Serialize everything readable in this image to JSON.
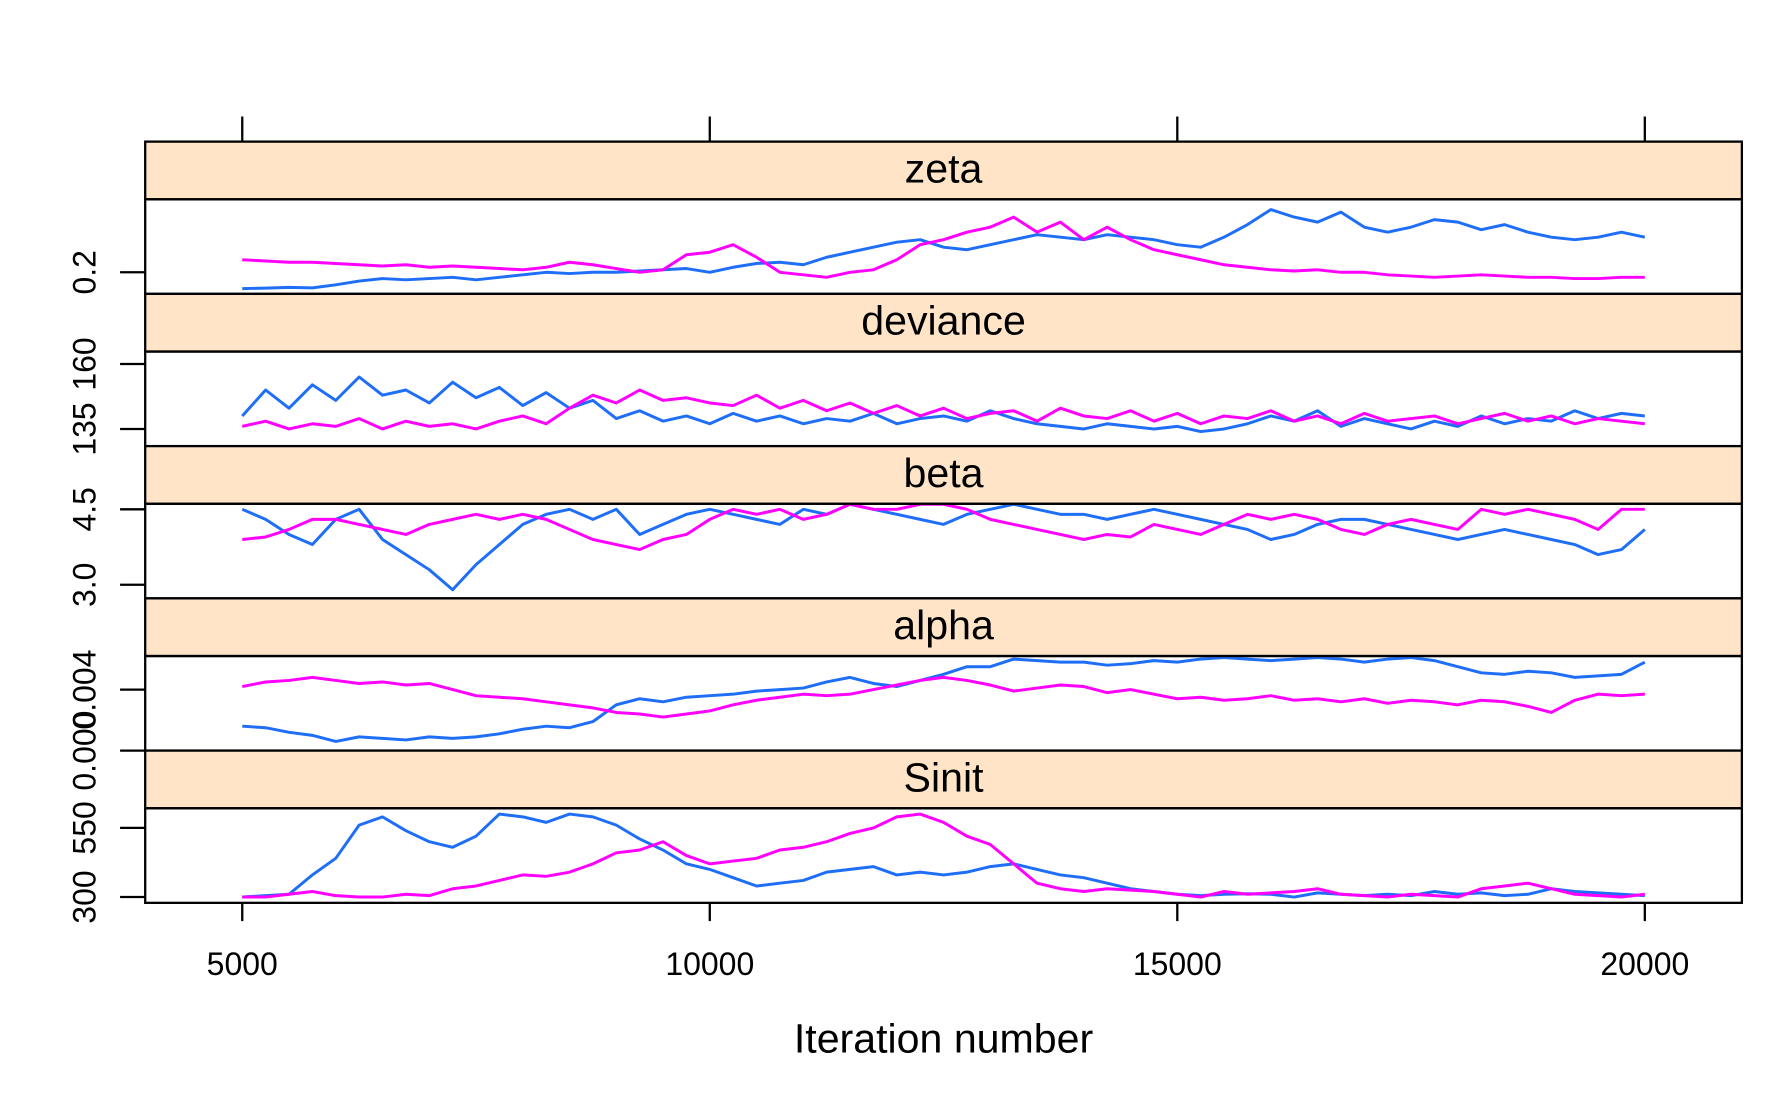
{
  "chart_data": [
    {
      "type": "line",
      "title": "zeta",
      "x": [
        5000,
        5250,
        5500,
        5750,
        6000,
        6250,
        6500,
        6750,
        7000,
        7250,
        7500,
        7750,
        8000,
        8250,
        8500,
        8750,
        9000,
        9250,
        9500,
        9750,
        10000,
        10250,
        10500,
        10750,
        11000,
        11250,
        11500,
        11750,
        12000,
        12250,
        12500,
        12750,
        13000,
        13250,
        13500,
        13750,
        14000,
        14250,
        14500,
        14750,
        15000,
        15250,
        15500,
        15750,
        16000,
        16250,
        16500,
        16750,
        17000,
        17250,
        17500,
        17750,
        18000,
        18250,
        18500,
        18750,
        19000,
        19250,
        19500,
        19750,
        20000
      ],
      "xlim": [
        3962,
        21038
      ],
      "ylim": [
        0.114,
        0.491
      ],
      "yticks": [
        0.2
      ],
      "series": [
        {
          "color": "#1f6ef7",
          "values": [
            0.135,
            0.137,
            0.14,
            0.138,
            0.15,
            0.165,
            0.175,
            0.17,
            0.175,
            0.18,
            0.17,
            0.18,
            0.19,
            0.2,
            0.195,
            0.2,
            0.2,
            0.205,
            0.21,
            0.215,
            0.2,
            0.22,
            0.235,
            0.24,
            0.23,
            0.26,
            0.28,
            0.3,
            0.32,
            0.33,
            0.3,
            0.29,
            0.31,
            0.33,
            0.35,
            0.34,
            0.33,
            0.35,
            0.34,
            0.33,
            0.31,
            0.3,
            0.34,
            0.39,
            0.45,
            0.42,
            0.4,
            0.44,
            0.38,
            0.36,
            0.38,
            0.41,
            0.4,
            0.37,
            0.39,
            0.36,
            0.34,
            0.33,
            0.34,
            0.36,
            0.34
          ]
        },
        {
          "color": "#ff00ff",
          "values": [
            0.25,
            0.245,
            0.24,
            0.24,
            0.235,
            0.23,
            0.225,
            0.23,
            0.22,
            0.225,
            0.22,
            0.215,
            0.21,
            0.22,
            0.24,
            0.23,
            0.215,
            0.2,
            0.21,
            0.27,
            0.28,
            0.31,
            0.26,
            0.2,
            0.19,
            0.18,
            0.2,
            0.21,
            0.25,
            0.31,
            0.33,
            0.36,
            0.38,
            0.42,
            0.36,
            0.4,
            0.33,
            0.38,
            0.33,
            0.29,
            0.27,
            0.25,
            0.23,
            0.22,
            0.21,
            0.205,
            0.21,
            0.2,
            0.2,
            0.19,
            0.185,
            0.18,
            0.185,
            0.19,
            0.185,
            0.18,
            0.18,
            0.175,
            0.175,
            0.18,
            0.18
          ]
        }
      ]
    },
    {
      "type": "line",
      "title": "deviance",
      "x": [
        5000,
        5250,
        5500,
        5750,
        6000,
        6250,
        6500,
        6750,
        7000,
        7250,
        7500,
        7750,
        8000,
        8250,
        8500,
        8750,
        9000,
        9250,
        9500,
        9750,
        10000,
        10250,
        10500,
        10750,
        11000,
        11250,
        11500,
        11750,
        12000,
        12250,
        12500,
        12750,
        13000,
        13250,
        13500,
        13750,
        14000,
        14250,
        14500,
        14750,
        15000,
        15250,
        15500,
        15750,
        16000,
        16250,
        16500,
        16750,
        17000,
        17250,
        17500,
        17750,
        18000,
        18250,
        18500,
        18750,
        19000,
        19250,
        19500,
        19750,
        20000
      ],
      "xlim": [
        3962,
        21038
      ],
      "ylim": [
        128.4,
        164.8
      ],
      "yticks": [
        135,
        160
      ],
      "series": [
        {
          "color": "#1f6ef7",
          "values": [
            140,
            150,
            143,
            152,
            146,
            155,
            148,
            150,
            145,
            153,
            147,
            151,
            144,
            149,
            143,
            146,
            139,
            142,
            138,
            140,
            137,
            141,
            138,
            140,
            137,
            139,
            138,
            141,
            137,
            139,
            140,
            138,
            142,
            139,
            137,
            136,
            135,
            137,
            136,
            135,
            136,
            134,
            135,
            137,
            140,
            138,
            142,
            136,
            139,
            137,
            135,
            138,
            136,
            140,
            137,
            139,
            138,
            142,
            139,
            141,
            140
          ]
        },
        {
          "color": "#ff00ff",
          "values": [
            136,
            138,
            135,
            137,
            136,
            139,
            135,
            138,
            136,
            137,
            135,
            138,
            140,
            137,
            143,
            148,
            145,
            150,
            146,
            147,
            145,
            144,
            148,
            143,
            146,
            142,
            145,
            141,
            144,
            140,
            143,
            139,
            141,
            142,
            138,
            143,
            140,
            139,
            142,
            138,
            141,
            137,
            140,
            139,
            142,
            138,
            140,
            137,
            141,
            138,
            139,
            140,
            137,
            139,
            141,
            138,
            140,
            137,
            139,
            138,
            137
          ]
        }
      ]
    },
    {
      "type": "line",
      "title": "beta",
      "x": [
        5000,
        5250,
        5500,
        5750,
        6000,
        6250,
        6500,
        6750,
        7000,
        7250,
        7500,
        7750,
        8000,
        8250,
        8500,
        8750,
        9000,
        9250,
        9500,
        9750,
        10000,
        10250,
        10500,
        10750,
        11000,
        11250,
        11500,
        11750,
        12000,
        12250,
        12500,
        12750,
        13000,
        13250,
        13500,
        13750,
        14000,
        14250,
        14500,
        14750,
        15000,
        15250,
        15500,
        15750,
        16000,
        16250,
        16500,
        16750,
        17000,
        17250,
        17500,
        17750,
        18000,
        18250,
        18500,
        18750,
        19000,
        19250,
        19500,
        19750,
        20000
      ],
      "xlim": [
        3962,
        21038
      ],
      "ylim": [
        2.73,
        4.61
      ],
      "yticks": [
        {
          "value": 3,
          "label": "3.0"
        },
        4.5
      ],
      "series": [
        {
          "color": "#1f6ef7",
          "values": [
            4.5,
            4.3,
            4.0,
            3.8,
            4.3,
            4.5,
            3.9,
            3.6,
            3.3,
            2.9,
            3.4,
            3.8,
            4.2,
            4.4,
            4.5,
            4.3,
            4.5,
            4.0,
            4.2,
            4.4,
            4.5,
            4.4,
            4.3,
            4.2,
            4.5,
            4.4,
            4.6,
            4.5,
            4.4,
            4.3,
            4.2,
            4.4,
            4.5,
            4.6,
            4.5,
            4.4,
            4.4,
            4.3,
            4.4,
            4.5,
            4.4,
            4.3,
            4.2,
            4.1,
            3.9,
            4.0,
            4.2,
            4.3,
            4.3,
            4.2,
            4.1,
            4.0,
            3.9,
            4.0,
            4.1,
            4.0,
            3.9,
            3.8,
            3.6,
            3.7,
            4.1
          ]
        },
        {
          "color": "#ff00ff",
          "values": [
            3.9,
            3.95,
            4.1,
            4.3,
            4.3,
            4.2,
            4.1,
            4.0,
            4.2,
            4.3,
            4.4,
            4.3,
            4.4,
            4.3,
            4.1,
            3.9,
            3.8,
            3.7,
            3.9,
            4.0,
            4.3,
            4.5,
            4.4,
            4.5,
            4.3,
            4.4,
            4.6,
            4.5,
            4.5,
            4.6,
            4.6,
            4.5,
            4.3,
            4.2,
            4.1,
            4.0,
            3.9,
            4.0,
            3.95,
            4.2,
            4.1,
            4.0,
            4.2,
            4.4,
            4.3,
            4.4,
            4.3,
            4.1,
            4.0,
            4.2,
            4.3,
            4.2,
            4.1,
            4.5,
            4.4,
            4.5,
            4.4,
            4.3,
            4.1,
            4.5,
            4.5
          ]
        }
      ]
    },
    {
      "type": "line",
      "title": "alpha",
      "x": [
        5000,
        5250,
        5500,
        5750,
        6000,
        6250,
        6500,
        6750,
        7000,
        7250,
        7500,
        7750,
        8000,
        8250,
        8500,
        8750,
        9000,
        9250,
        9500,
        9750,
        10000,
        10250,
        10500,
        10750,
        11000,
        11250,
        11500,
        11750,
        12000,
        12250,
        12500,
        12750,
        13000,
        13250,
        13500,
        13750,
        14000,
        14250,
        14500,
        14750,
        15000,
        15250,
        15500,
        15750,
        16000,
        16250,
        16500,
        16750,
        17000,
        17250,
        17500,
        17750,
        18000,
        18250,
        18500,
        18750,
        19000,
        19250,
        19500,
        19750,
        20000
      ],
      "xlim": [
        3962,
        21038
      ],
      "ylim": [
        0,
        0.0062
      ],
      "yticks": [
        {
          "value": 0,
          "label": "0.000"
        },
        0.004
      ],
      "series": [
        {
          "color": "#1f6ef7",
          "values": [
            0.0016,
            0.0015,
            0.0012,
            0.001,
            0.0006,
            0.0009,
            0.0008,
            0.0007,
            0.0009,
            0.0008,
            0.0009,
            0.0011,
            0.0014,
            0.0016,
            0.0015,
            0.0019,
            0.003,
            0.0034,
            0.0032,
            0.0035,
            0.0036,
            0.0037,
            0.0039,
            0.004,
            0.0041,
            0.0045,
            0.0048,
            0.0044,
            0.0042,
            0.0046,
            0.005,
            0.0055,
            0.0055,
            0.006,
            0.0059,
            0.0058,
            0.0058,
            0.0056,
            0.0057,
            0.0059,
            0.0058,
            0.006,
            0.0061,
            0.006,
            0.0059,
            0.006,
            0.0061,
            0.006,
            0.0058,
            0.006,
            0.0061,
            0.0059,
            0.0055,
            0.0051,
            0.005,
            0.0052,
            0.0051,
            0.0048,
            0.0049,
            0.005,
            0.0058
          ]
        },
        {
          "color": "#ff00ff",
          "values": [
            0.0042,
            0.0045,
            0.0046,
            0.0048,
            0.0046,
            0.0044,
            0.0045,
            0.0043,
            0.0044,
            0.004,
            0.0036,
            0.0035,
            0.0034,
            0.0032,
            0.003,
            0.0028,
            0.0025,
            0.0024,
            0.0022,
            0.0024,
            0.0026,
            0.003,
            0.0033,
            0.0035,
            0.0037,
            0.0036,
            0.0037,
            0.004,
            0.0043,
            0.0046,
            0.0048,
            0.0046,
            0.0043,
            0.0039,
            0.0041,
            0.0043,
            0.0042,
            0.0038,
            0.004,
            0.0037,
            0.0034,
            0.0035,
            0.0033,
            0.0034,
            0.0036,
            0.0033,
            0.0034,
            0.0032,
            0.0034,
            0.0031,
            0.0033,
            0.0032,
            0.003,
            0.0033,
            0.0032,
            0.0029,
            0.0025,
            0.0033,
            0.0037,
            0.0036,
            0.0037
          ]
        }
      ]
    },
    {
      "type": "line",
      "title": "Sinit",
      "x": [
        5000,
        5250,
        5500,
        5750,
        6000,
        6250,
        6500,
        6750,
        7000,
        7250,
        7500,
        7750,
        8000,
        8250,
        8500,
        8750,
        9000,
        9250,
        9500,
        9750,
        10000,
        10250,
        10500,
        10750,
        11000,
        11250,
        11500,
        11750,
        12000,
        12250,
        12500,
        12750,
        13000,
        13250,
        13500,
        13750,
        14000,
        14250,
        14500,
        14750,
        15000,
        15250,
        15500,
        15750,
        16000,
        16250,
        16500,
        16750,
        17000,
        17250,
        17500,
        17750,
        18000,
        18250,
        18500,
        18750,
        19000,
        19250,
        19500,
        19750,
        20000
      ],
      "xlim": [
        3962,
        21038
      ],
      "xticks": [
        5000,
        10000,
        15000,
        20000
      ],
      "xlabel": "Iteration number",
      "ylim": [
        279,
        621
      ],
      "yticks": [
        300,
        550
      ],
      "series": [
        {
          "color": "#1f6ef7",
          "values": [
            300,
            305,
            310,
            380,
            440,
            560,
            590,
            540,
            500,
            480,
            520,
            600,
            590,
            570,
            600,
            590,
            560,
            510,
            470,
            420,
            400,
            370,
            340,
            350,
            360,
            390,
            400,
            410,
            380,
            390,
            380,
            390,
            410,
            420,
            400,
            380,
            370,
            350,
            330,
            320,
            310,
            305,
            310,
            312,
            310,
            300,
            315,
            310,
            305,
            310,
            305,
            320,
            310,
            315,
            305,
            310,
            330,
            320,
            315,
            310,
            305
          ]
        },
        {
          "color": "#ff00ff",
          "values": [
            300,
            300,
            310,
            320,
            305,
            300,
            300,
            310,
            305,
            330,
            340,
            360,
            380,
            375,
            390,
            420,
            460,
            470,
            500,
            450,
            420,
            430,
            440,
            470,
            480,
            500,
            530,
            550,
            590,
            600,
            570,
            520,
            490,
            420,
            350,
            330,
            320,
            330,
            325,
            320,
            310,
            300,
            320,
            310,
            315,
            320,
            330,
            310,
            305,
            300,
            310,
            305,
            300,
            330,
            340,
            350,
            330,
            310,
            305,
            300,
            310
          ]
        }
      ]
    }
  ]
}
